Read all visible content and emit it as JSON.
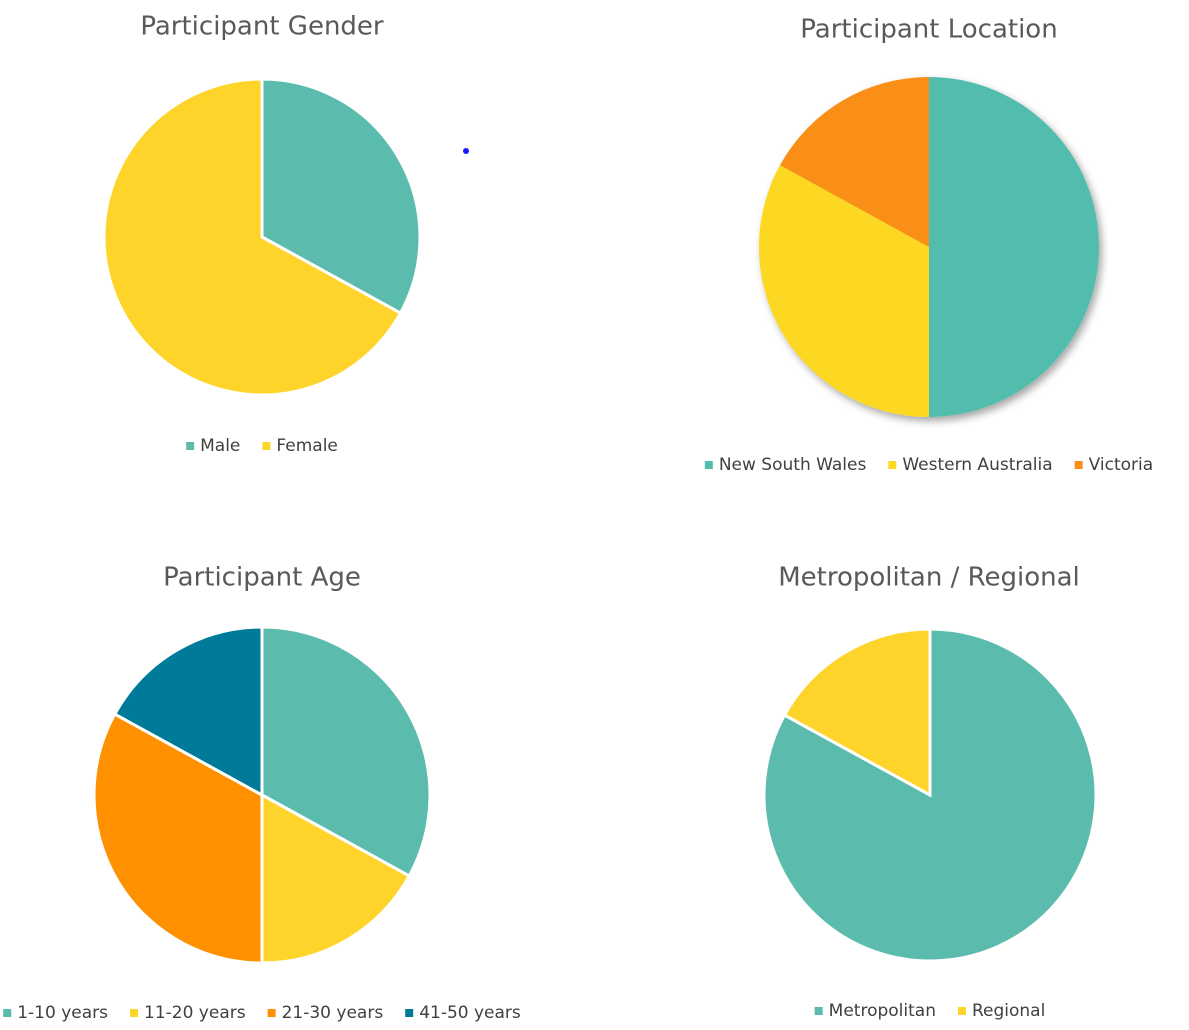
{
  "chart_data": [
    {
      "type": "pie",
      "title": "Participant Gender",
      "categories": [
        "Male",
        "Female"
      ],
      "values": [
        33,
        67
      ],
      "colors": [
        "#5bbcad",
        "#ffd42a"
      ]
    },
    {
      "type": "pie",
      "title": "Participant Location",
      "categories": [
        "New South Wales",
        "Western Australia",
        "Victoria"
      ],
      "values": [
        50,
        33,
        17
      ],
      "colors": [
        "#52bdad",
        "#fcd824",
        "#f98f16"
      ]
    },
    {
      "type": "pie",
      "title": "Participant Age",
      "categories": [
        "1-10 years",
        "11-20 years",
        "21-30 years",
        "41-50 years"
      ],
      "values": [
        33,
        17,
        33,
        17
      ],
      "colors": [
        "#5bbcad",
        "#ffd42a",
        "#ff9100",
        "#007a99"
      ]
    },
    {
      "type": "pie",
      "title": "Metropolitan / Regional",
      "categories": [
        "Metropolitan",
        "Regional"
      ],
      "values": [
        83,
        17
      ],
      "colors": [
        "#5bbcad",
        "#ffd42a"
      ]
    }
  ]
}
